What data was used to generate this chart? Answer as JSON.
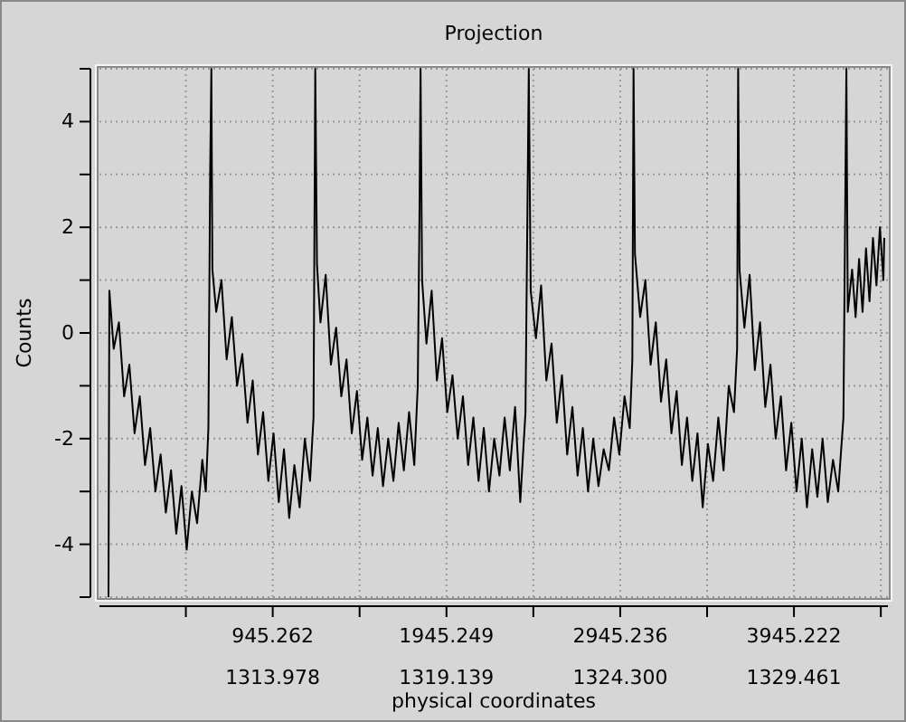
{
  "chart_data": {
    "type": "line",
    "title": "Projection",
    "xlabel": "physical coordinates",
    "ylabel": "Counts",
    "xlim": [
      -52,
      4486
    ],
    "ylim": [
      -5,
      5
    ],
    "xticks": [
      {
        "value": 445.27,
        "label": null
      },
      945.262,
      {
        "value": 1445.26,
        "label": null
      },
      1945.249,
      {
        "value": 2445.24,
        "label": null
      },
      2945.236,
      {
        "value": 3445.23,
        "label": null
      },
      3945.222,
      {
        "value": 4445.22,
        "label": null
      }
    ],
    "x2lim": [
      1308.831,
      1332.252
    ],
    "x2ticks": [
      1313.978,
      1319.139,
      {
        "value": 1324.3,
        "label": "1324.300"
      },
      1329.461
    ],
    "yticks": [
      {
        "value": -5,
        "label": null
      },
      -4,
      {
        "value": -3,
        "label": null
      },
      -2,
      {
        "value": -1,
        "label": null
      },
      0,
      {
        "value": 1,
        "label": null
      },
      2,
      {
        "value": 3,
        "label": null
      },
      4,
      {
        "value": 5,
        "label": null
      }
    ],
    "grid": true,
    "marker": "none",
    "line_style": "solid",
    "series": [
      {
        "color": "#000000",
        "x": [
          0,
          5,
          30,
          60,
          90,
          120,
          150,
          180,
          210,
          240,
          270,
          300,
          330,
          360,
          390,
          420,
          450,
          480,
          510,
          540,
          560,
          575,
          585,
          592,
          598,
          620,
          650,
          680,
          710,
          740,
          770,
          800,
          830,
          860,
          890,
          920,
          950,
          980,
          1010,
          1040,
          1070,
          1100,
          1130,
          1160,
          1180,
          1190,
          1200,
          1220,
          1250,
          1280,
          1310,
          1340,
          1370,
          1400,
          1430,
          1460,
          1490,
          1520,
          1550,
          1580,
          1610,
          1640,
          1670,
          1700,
          1730,
          1760,
          1780,
          1790,
          1796,
          1805,
          1830,
          1860,
          1890,
          1920,
          1950,
          1980,
          2010,
          2040,
          2070,
          2100,
          2130,
          2160,
          2190,
          2220,
          2250,
          2280,
          2310,
          2340,
          2370,
          2400,
          2419,
          2430,
          2460,
          2490,
          2520,
          2550,
          2580,
          2610,
          2640,
          2670,
          2700,
          2730,
          2760,
          2790,
          2820,
          2850,
          2880,
          2910,
          2940,
          2970,
          3000,
          3015,
          3022,
          3030,
          3060,
          3090,
          3120,
          3150,
          3180,
          3210,
          3240,
          3270,
          3300,
          3330,
          3360,
          3390,
          3420,
          3450,
          3480,
          3510,
          3540,
          3570,
          3600,
          3618,
          3624,
          3632,
          3660,
          3690,
          3720,
          3750,
          3780,
          3810,
          3840,
          3870,
          3900,
          3930,
          3960,
          3990,
          4020,
          4050,
          4080,
          4110,
          4140,
          4170,
          4200,
          4230,
          4247,
          4255,
          4280,
          4300,
          4320,
          4340,
          4360,
          4380,
          4400,
          4420,
          4440,
          4460,
          4465
        ],
        "values": [
          -5,
          0.8,
          -0.3,
          0.2,
          -1.2,
          -0.6,
          -1.9,
          -1.2,
          -2.5,
          -1.8,
          -3.0,
          -2.3,
          -3.4,
          -2.6,
          -3.8,
          -2.9,
          -4.1,
          -3.0,
          -3.6,
          -2.4,
          -3.0,
          -1.8,
          3.0,
          5,
          1.2,
          0.4,
          1.0,
          -0.5,
          0.3,
          -1.0,
          -0.4,
          -1.7,
          -0.9,
          -2.3,
          -1.5,
          -2.8,
          -1.9,
          -3.2,
          -2.2,
          -3.5,
          -2.5,
          -3.3,
          -2.0,
          -2.8,
          -1.6,
          5,
          1.3,
          0.2,
          1.1,
          -0.6,
          0.1,
          -1.2,
          -0.5,
          -1.9,
          -1.1,
          -2.4,
          -1.6,
          -2.7,
          -1.8,
          -2.9,
          -2.0,
          -2.8,
          -1.7,
          -2.6,
          -1.5,
          -2.5,
          -1.0,
          2.3,
          5,
          1.0,
          -0.2,
          0.8,
          -0.9,
          -0.1,
          -1.5,
          -0.8,
          -2.0,
          -1.2,
          -2.5,
          -1.6,
          -2.8,
          -1.8,
          -3.0,
          -2.0,
          -2.7,
          -1.6,
          -2.6,
          -1.4,
          -3.2,
          -1.5,
          5,
          0.8,
          -0.1,
          0.9,
          -0.9,
          -0.2,
          -1.7,
          -0.8,
          -2.3,
          -1.4,
          -2.7,
          -1.8,
          -3.0,
          -2.0,
          -2.9,
          -2.2,
          -2.6,
          -1.6,
          -2.3,
          -1.2,
          -1.8,
          -0.5,
          5,
          1.5,
          0.3,
          1.0,
          -0.6,
          0.2,
          -1.3,
          -0.5,
          -1.9,
          -1.1,
          -2.5,
          -1.6,
          -2.8,
          -1.9,
          -3.3,
          -2.1,
          -2.8,
          -1.6,
          -2.6,
          -1.0,
          -1.5,
          -0.3,
          5,
          1.2,
          0.1,
          1.1,
          -0.7,
          0.2,
          -1.4,
          -0.6,
          -2.0,
          -1.2,
          -2.6,
          -1.7,
          -3.0,
          -2.0,
          -3.3,
          -2.2,
          -3.1,
          -2.0,
          -3.2,
          -2.4,
          -3.0,
          -1.6,
          5,
          0.4,
          1.2,
          0.3,
          1.4,
          0.4,
          1.6,
          0.6,
          1.8,
          0.9,
          2.0,
          1.0,
          1.8
        ]
      }
    ]
  }
}
